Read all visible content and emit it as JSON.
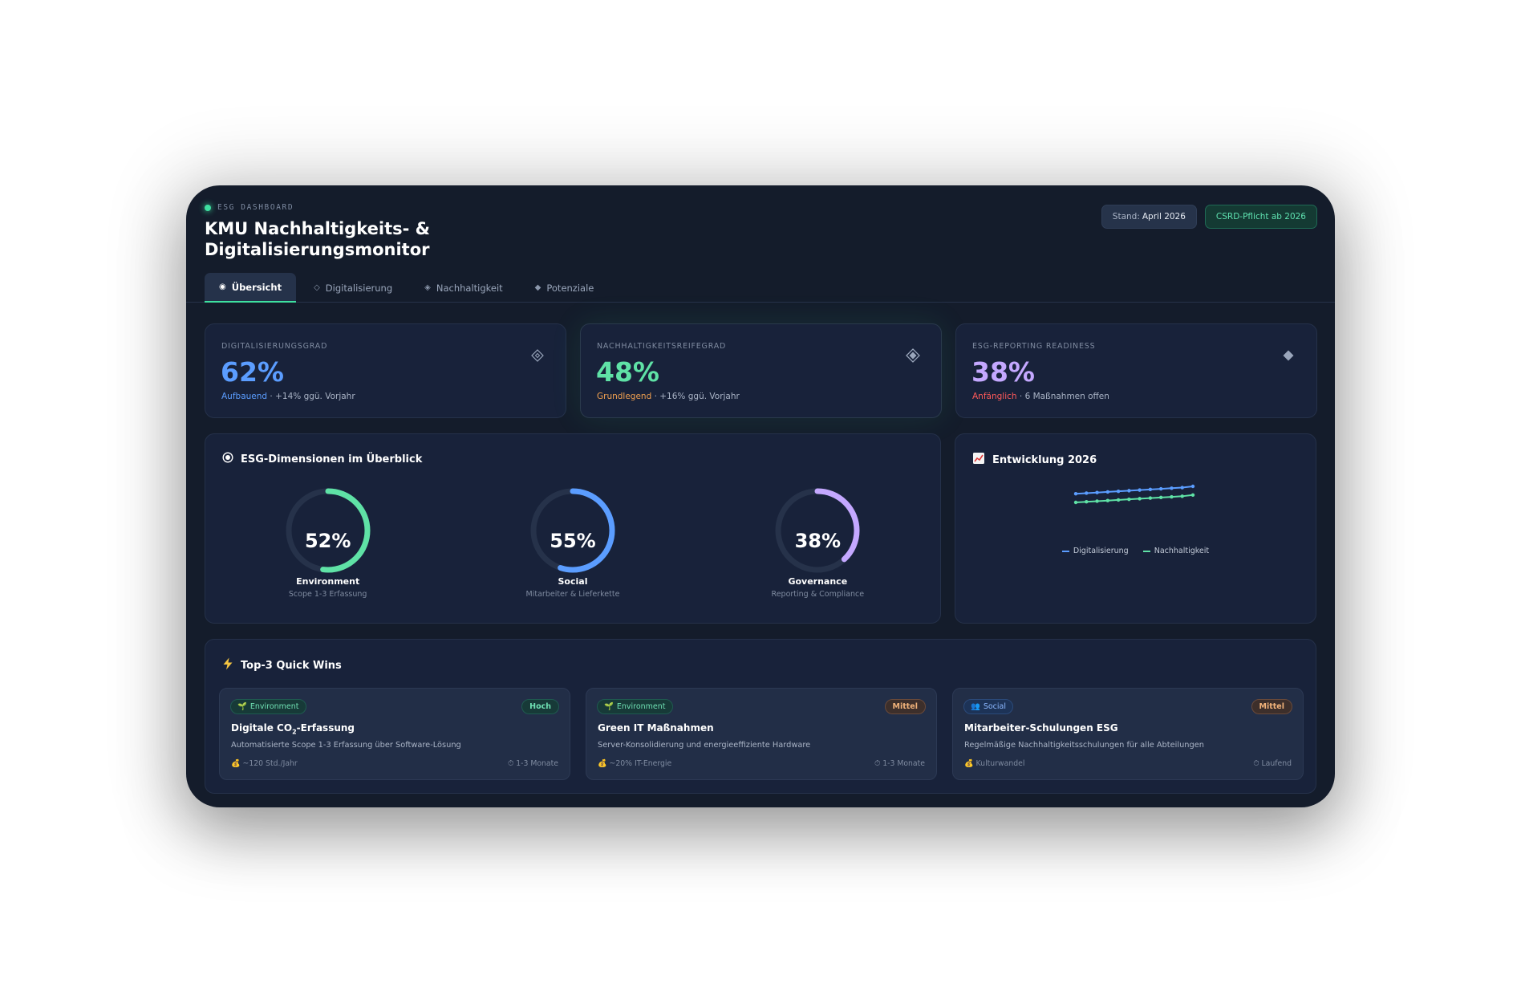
{
  "header": {
    "eyebrow": "ESG DASHBOARD",
    "title": "KMU Nachhaltigkeits- & Digitalisierungsmonitor",
    "stand_label": "Stand:",
    "stand_value": "April 2026",
    "csrd_badge": "CSRD-Pflicht ab 2026"
  },
  "tabs": [
    {
      "label": "Übersicht",
      "icon": "◉"
    },
    {
      "label": "Digitalisierung",
      "icon": "◇"
    },
    {
      "label": "Nachhaltigkeit",
      "icon": "◈"
    },
    {
      "label": "Potenziale",
      "icon": "◆"
    }
  ],
  "kpis": [
    {
      "label": "DIGITALISIERUNGSGRAD",
      "value": "62%",
      "status": "Aufbauend",
      "detail": " · +14% ggü. Vorjahr",
      "color": "#5b9dff",
      "status_color": "#5b9dff",
      "icon": "diamond-outline-icon"
    },
    {
      "label": "NACHHALTIGKEITSREIFEGRAD",
      "value": "48%",
      "status": "Grundlegend",
      "detail": " · +16% ggü. Vorjahr",
      "color": "#5fe2a6",
      "status_color": "#f0a050",
      "icon": "diamond-dotted-icon"
    },
    {
      "label": "ESG-REPORTING READINESS",
      "value": "38%",
      "status": "Anfänglich",
      "detail": " · 6 Maßnahmen offen",
      "color": "#c4a8ff",
      "status_color": "#ff5a5a",
      "icon": "diamond-filled-icon"
    }
  ],
  "esg": {
    "title": "ESG-Dimensionen im Überblick",
    "dimensions": [
      {
        "value": "52%",
        "percent": 52,
        "name": "Environment",
        "sub": "Scope 1-3 Erfassung",
        "color": "#5fe2a6"
      },
      {
        "value": "55%",
        "percent": 55,
        "name": "Social",
        "sub": "Mitarbeiter & Lieferkette",
        "color": "#5b9dff"
      },
      {
        "value": "38%",
        "percent": 38,
        "name": "Governance",
        "sub": "Reporting & Compliance",
        "color": "#c4a8ff"
      }
    ]
  },
  "development": {
    "title": "Entwicklung 2026",
    "chart_data": {
      "type": "line",
      "x": [
        1,
        2,
        3,
        4,
        5,
        6,
        7,
        8,
        9,
        10,
        11,
        12
      ],
      "series": [
        {
          "name": "Digitalisierung",
          "values": [
            50,
            51,
            52,
            53,
            54,
            55,
            56,
            57,
            58,
            59,
            60,
            62
          ],
          "color": "#5b9dff"
        },
        {
          "name": "Nachhaltigkeit",
          "values": [
            36,
            37,
            38,
            39,
            40,
            41,
            42,
            43,
            44,
            45,
            46,
            48
          ],
          "color": "#5fe2a6"
        }
      ]
    }
  },
  "quickwins": {
    "title": "Top-3 Quick Wins",
    "items": [
      {
        "tag": "Environment",
        "tag_type": "env",
        "tag_icon": "🌱",
        "priority": "Hoch",
        "priority_type": "hoch",
        "title_pre": "Digitale CO",
        "title_sub": "2",
        "title_post": "-Erfassung",
        "desc": "Automatisierte Scope 1-3 Erfassung über Software-Lösung",
        "saving": "~120 Std./Jahr",
        "duration": "1-3 Monate"
      },
      {
        "tag": "Environment",
        "tag_type": "env",
        "tag_icon": "🌱",
        "priority": "Mittel",
        "priority_type": "mittel",
        "title_pre": "Green IT Maßnahmen",
        "title_sub": "",
        "title_post": "",
        "desc": "Server-Konsolidierung und energieeffiziente Hardware",
        "saving": "~20% IT-Energie",
        "duration": "1-3 Monate"
      },
      {
        "tag": "Social",
        "tag_type": "soc",
        "tag_icon": "👥",
        "priority": "Mittel",
        "priority_type": "mittel",
        "title_pre": "Mitarbeiter-Schulungen ESG",
        "title_sub": "",
        "title_post": "",
        "desc": "Regelmäßige Nachhaltigkeitsschulungen für alle Abteilungen",
        "saving": "Kulturwandel",
        "duration": "Laufend"
      }
    ]
  }
}
